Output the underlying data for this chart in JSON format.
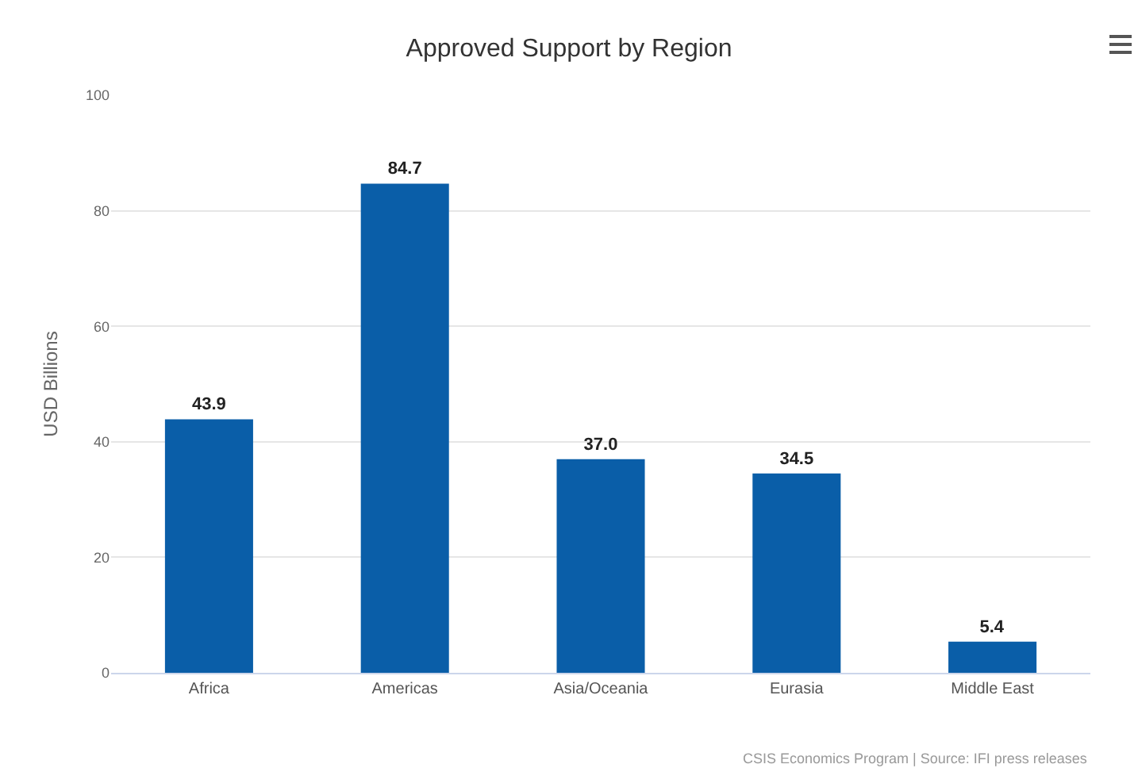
{
  "chart_data": {
    "type": "bar",
    "title": "Approved Support by Region",
    "ylabel": "USD Billions",
    "categories": [
      "Africa",
      "Americas",
      "Asia/Oceania",
      "Eurasia",
      "Middle East"
    ],
    "values": [
      43.9,
      84.7,
      37.0,
      34.5,
      5.4
    ],
    "value_labels": [
      "43.9",
      "84.7",
      "37.0",
      "34.5",
      "5.4"
    ],
    "color": "#0a5ea8",
    "ylim": [
      0,
      100
    ],
    "yticks": [
      0,
      20,
      40,
      60,
      80,
      100
    ],
    "grid": "y",
    "annotations": [
      "CSIS Economics Program | Source: IFI press releases"
    ]
  }
}
